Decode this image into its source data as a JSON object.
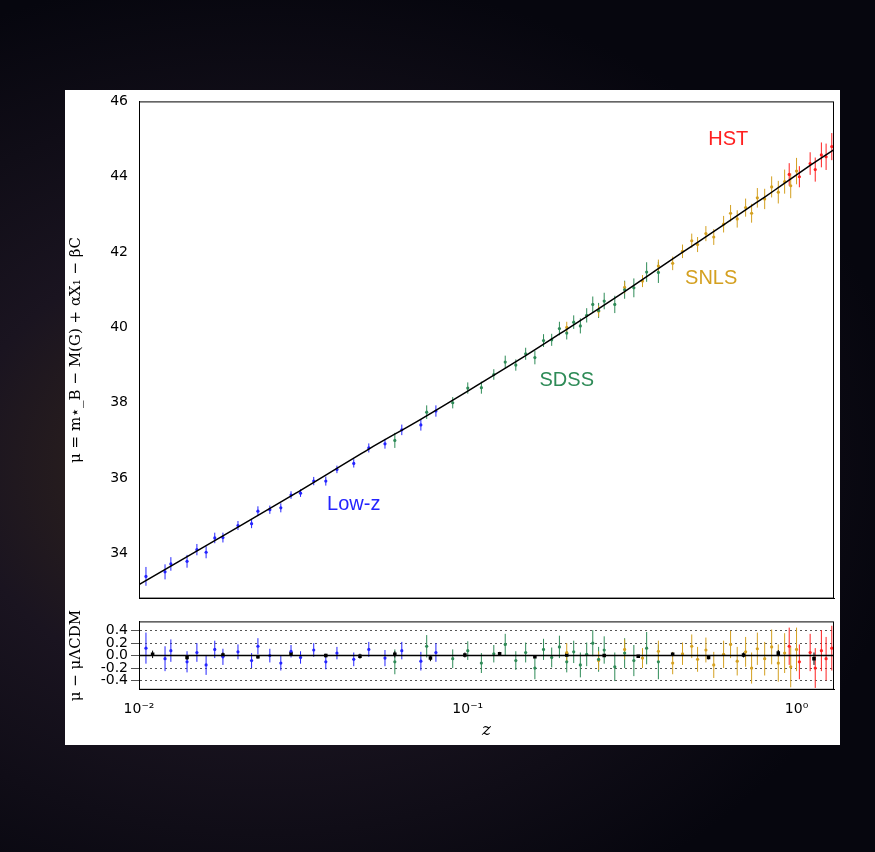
{
  "chart_data": [
    {
      "type": "scatter",
      "log": "x",
      "tick_labels": "y",
      "y_label": "μ = m⋆_B − M(G) + αX₁ − βC",
      "xlim": [
        0.01,
        1.3
      ],
      "ylim": [
        32.8,
        46
      ],
      "xticks": [
        {
          "value": 0.01,
          "label": "10⁻²"
        },
        {
          "value": 0.1,
          "label": "10⁻¹"
        },
        {
          "value": 1,
          "label": "10⁰"
        }
      ],
      "yticks": [
        34,
        36,
        38,
        40,
        42,
        44,
        46
      ],
      "series": [
        {
          "color": "#2424ff",
          "marker": "circle",
          "x": [
            0.0105,
            0.012,
            0.0125,
            0.014,
            0.015,
            0.016,
            0.017,
            0.018,
            0.02,
            0.022,
            0.023,
            0.025,
            0.027,
            0.029,
            0.031,
            0.034,
            0.037,
            0.04,
            0.045,
            0.05,
            0.056,
            0.063,
            0.072,
            0.08
          ],
          "values": [
            33.39,
            33.51,
            33.72,
            33.79,
            34.1,
            34.03,
            34.41,
            34.42,
            34.74,
            34.79,
            35.12,
            35.16,
            35.21,
            35.55,
            35.6,
            35.92,
            35.92,
            36.23,
            36.39,
            36.8,
            36.91,
            37.28,
            37.41,
            37.78
          ],
          "errors": [
            0.25,
            0.2,
            0.18,
            0.17,
            0.15,
            0.16,
            0.14,
            0.13,
            0.12,
            0.12,
            0.13,
            0.11,
            0.12,
            0.1,
            0.1,
            0.11,
            0.12,
            0.1,
            0.11,
            0.12,
            0.13,
            0.14,
            0.15,
            0.15
          ]
        },
        {
          "color": "#2e8b57",
          "marker": "circle",
          "x": [
            0.06,
            0.075,
            0.09,
            0.1,
            0.11,
            0.12,
            0.13,
            0.14,
            0.15,
            0.16,
            0.17,
            0.18,
            0.19,
            0.2,
            0.21,
            0.22,
            0.23,
            0.24,
            0.25,
            0.26,
            0.28,
            0.3,
            0.32,
            0.35,
            0.38
          ],
          "values": [
            37.0,
            37.75,
            38.0,
            38.39,
            38.4,
            38.75,
            39.08,
            39.0,
            39.3,
            39.2,
            39.65,
            39.67,
            39.97,
            39.85,
            40.14,
            40.04,
            40.32,
            40.61,
            40.45,
            40.7,
            40.61,
            41.0,
            41.05,
            41.47,
            41.46
          ],
          "errors": [
            0.2,
            0.18,
            0.15,
            0.15,
            0.16,
            0.14,
            0.17,
            0.15,
            0.16,
            0.18,
            0.17,
            0.16,
            0.18,
            0.17,
            0.18,
            0.2,
            0.19,
            0.21,
            0.2,
            0.22,
            0.23,
            0.24,
            0.25,
            0.26,
            0.28
          ]
        },
        {
          "color": "#d4a020",
          "marker": "circle",
          "x": [
            0.2,
            0.25,
            0.3,
            0.34,
            0.38,
            0.42,
            0.45,
            0.48,
            0.5,
            0.53,
            0.56,
            0.6,
            0.63,
            0.66,
            0.7,
            0.73,
            0.76,
            0.8,
            0.84,
            0.88,
            0.92,
            0.96,
            1.0
          ],
          "values": [
            40.0,
            40.43,
            41.06,
            41.23,
            41.63,
            41.7,
            42.02,
            42.3,
            42.2,
            42.49,
            42.4,
            42.74,
            43.03,
            42.88,
            43.18,
            43.03,
            43.44,
            43.41,
            43.73,
            43.59,
            43.87,
            43.76,
            44.15
          ],
          "errors": [
            0.15,
            0.15,
            0.16,
            0.16,
            0.17,
            0.18,
            0.18,
            0.19,
            0.2,
            0.2,
            0.21,
            0.22,
            0.22,
            0.23,
            0.24,
            0.25,
            0.26,
            0.27,
            0.28,
            0.3,
            0.32,
            0.33,
            0.35
          ]
        },
        {
          "color": "#ff2020",
          "marker": "circle",
          "x": [
            0.95,
            1.02,
            1.1,
            1.14,
            1.19,
            1.23,
            1.28
          ],
          "values": [
            44.06,
            44.0,
            44.35,
            44.19,
            44.58,
            44.53,
            44.8
          ],
          "errors": [
            0.3,
            0.28,
            0.3,
            0.32,
            0.33,
            0.35,
            0.36
          ]
        },
        {
          "type": "line",
          "color": "#000000",
          "x": [
            0.01,
            0.02,
            0.03,
            0.05,
            0.07,
            0.1,
            0.15,
            0.2,
            0.3,
            0.4,
            0.5,
            0.6,
            0.7,
            0.8,
            0.9,
            1.0,
            1.1,
            1.2,
            1.3
          ],
          "values": [
            33.17,
            34.7,
            35.6,
            36.77,
            37.5,
            38.31,
            39.25,
            39.95,
            40.95,
            41.69,
            42.26,
            42.72,
            43.12,
            43.46,
            43.77,
            44.05,
            44.3,
            44.52,
            44.72
          ]
        }
      ],
      "annotations": [
        {
          "text": "Low-z",
          "x": 0.045,
          "y": 35.3,
          "color": "#2424ff"
        },
        {
          "text": "SDSS",
          "x": 0.2,
          "y": 38.6,
          "color": "#2e8b57"
        },
        {
          "text": "SNLS",
          "x": 0.55,
          "y": 41.3,
          "color": "#d4a020"
        },
        {
          "text": "HST",
          "x": 0.62,
          "y": 45.0,
          "color": "#ff2020"
        }
      ]
    },
    {
      "type": "scatter",
      "log": "x",
      "grid": true,
      "x_label": "z",
      "y_label": "μ − μΛCDM",
      "xlim": [
        0.01,
        1.3
      ],
      "ylim": [
        -0.55,
        0.55
      ],
      "xticks": [
        {
          "value": 0.01,
          "label": "10⁻²"
        },
        {
          "value": 0.1,
          "label": "10⁻¹"
        },
        {
          "value": 1,
          "label": "10⁰"
        }
      ],
      "yticks": [
        -0.4,
        -0.2,
        {
          "value": 0,
          "label": "0.0"
        },
        0.2,
        0.4
      ],
      "series": [
        {
          "color": "#2424ff",
          "marker": "circle",
          "x": [
            0.0105,
            0.012,
            0.0125,
            0.014,
            0.015,
            0.016,
            0.017,
            0.018,
            0.02,
            0.022,
            0.023,
            0.025,
            0.027,
            0.029,
            0.031,
            0.034,
            0.037,
            0.04,
            0.045,
            0.05,
            0.056,
            0.063,
            0.072,
            0.08
          ],
          "values": [
            0.12,
            -0.05,
            0.08,
            -0.1,
            0.05,
            -0.15,
            0.1,
            -0.02,
            0.06,
            -0.08,
            0.15,
            0.0,
            -0.12,
            0.07,
            -0.03,
            0.09,
            -0.1,
            0.04,
            -0.06,
            0.1,
            -0.04,
            0.08,
            -0.09,
            0.05
          ],
          "errors": [
            0.25,
            0.2,
            0.18,
            0.17,
            0.15,
            0.16,
            0.14,
            0.13,
            0.12,
            0.12,
            0.13,
            0.11,
            0.12,
            0.1,
            0.1,
            0.11,
            0.12,
            0.1,
            0.11,
            0.12,
            0.13,
            0.14,
            0.15,
            0.15
          ]
        },
        {
          "color": "#2e8b57",
          "marker": "circle",
          "x": [
            0.06,
            0.075,
            0.09,
            0.1,
            0.11,
            0.12,
            0.13,
            0.14,
            0.15,
            0.16,
            0.17,
            0.18,
            0.19,
            0.2,
            0.21,
            0.22,
            0.23,
            0.24,
            0.25,
            0.26,
            0.28,
            0.3,
            0.32,
            0.35,
            0.38
          ],
          "values": [
            -0.1,
            0.15,
            -0.05,
            0.08,
            -0.12,
            0.03,
            0.18,
            -0.08,
            0.05,
            -0.2,
            0.1,
            -0.03,
            0.14,
            -0.1,
            0.06,
            -0.15,
            0.02,
            0.2,
            -0.06,
            0.09,
            -0.18,
            0.04,
            -0.08,
            0.12,
            -0.1
          ],
          "errors": [
            0.2,
            0.18,
            0.15,
            0.15,
            0.16,
            0.14,
            0.17,
            0.15,
            0.16,
            0.18,
            0.17,
            0.16,
            0.18,
            0.17,
            0.18,
            0.2,
            0.19,
            0.21,
            0.2,
            0.22,
            0.23,
            0.24,
            0.25,
            0.26,
            0.28
          ]
        },
        {
          "color": "#d4a020",
          "marker": "circle",
          "x": [
            0.2,
            0.25,
            0.3,
            0.34,
            0.38,
            0.42,
            0.45,
            0.48,
            0.5,
            0.53,
            0.56,
            0.6,
            0.63,
            0.66,
            0.7,
            0.73,
            0.76,
            0.8,
            0.84,
            0.88,
            0.92,
            0.96,
            1.0
          ],
          "values": [
            0.05,
            -0.08,
            0.1,
            -0.04,
            0.07,
            -0.12,
            0.03,
            0.15,
            -0.06,
            0.09,
            -0.15,
            0.02,
            0.18,
            -0.09,
            0.06,
            -0.2,
            0.11,
            -0.05,
            0.14,
            -0.12,
            0.04,
            -0.18,
            0.1
          ],
          "errors": [
            0.15,
            0.15,
            0.16,
            0.16,
            0.17,
            0.18,
            0.18,
            0.19,
            0.2,
            0.2,
            0.21,
            0.22,
            0.22,
            0.23,
            0.24,
            0.25,
            0.26,
            0.27,
            0.28,
            0.3,
            0.32,
            0.33,
            0.35
          ]
        },
        {
          "color": "#ff2020",
          "marker": "circle",
          "x": [
            0.95,
            1.02,
            1.1,
            1.14,
            1.19,
            1.23,
            1.28
          ],
          "values": [
            0.15,
            -0.1,
            0.05,
            -0.2,
            0.08,
            -0.05,
            0.12
          ],
          "errors": [
            0.3,
            0.28,
            0.3,
            0.32,
            0.33,
            0.35,
            0.36
          ]
        },
        {
          "color": "#000000",
          "marker": "square",
          "x": [
            0.011,
            0.014,
            0.018,
            0.023,
            0.029,
            0.037,
            0.047,
            0.06,
            0.077,
            0.098,
            0.125,
            0.16,
            0.2,
            0.26,
            0.33,
            0.42,
            0.54,
            0.69,
            0.88,
            1.13
          ],
          "values": [
            0.02,
            -0.03,
            0.01,
            -0.02,
            0.03,
            0.0,
            -0.01,
            0.02,
            -0.04,
            0.01,
            0.03,
            -0.02,
            0.01,
            0.0,
            -0.01,
            0.02,
            -0.03,
            0.01,
            0.04,
            -0.05
          ],
          "errors": [
            0.06,
            0.04,
            0.04,
            0.03,
            0.03,
            0.03,
            0.04,
            0.05,
            0.05,
            0.04,
            0.03,
            0.02,
            0.02,
            0.02,
            0.02,
            0.03,
            0.03,
            0.04,
            0.05,
            0.1
          ]
        },
        {
          "type": "line",
          "color": "#000000",
          "x": [
            0.01,
            1.3
          ],
          "values": [
            0,
            0
          ]
        }
      ]
    }
  ]
}
